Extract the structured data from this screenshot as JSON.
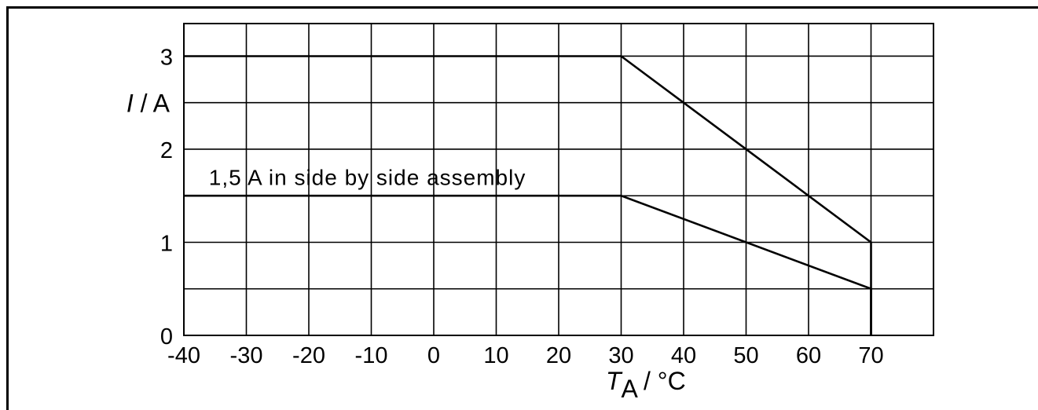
{
  "chart_data": {
    "type": "line",
    "title": "",
    "xlabel": {
      "symbol": "T",
      "subscript": "A",
      "unit": " / °C"
    },
    "ylabel": {
      "symbol": "I",
      "unit": " / A"
    },
    "xlim": [
      -40,
      80
    ],
    "ylim": [
      0,
      3.35
    ],
    "x_ticks": [
      -40,
      -30,
      -20,
      -10,
      0,
      10,
      20,
      30,
      40,
      50,
      60,
      70
    ],
    "x_tick_labels": [
      "-40",
      "-30",
      "-20",
      "-10",
      "0",
      "10",
      "20",
      "30",
      "40",
      "50",
      "60",
      "70"
    ],
    "x_grid": [
      -40,
      -30,
      -20,
      -10,
      0,
      10,
      20,
      30,
      40,
      50,
      60,
      70,
      80
    ],
    "y_ticks": [
      0,
      1,
      2,
      3
    ],
    "y_tick_labels": [
      "0",
      "1",
      "2",
      "3"
    ],
    "y_grid": [
      0,
      0.5,
      1,
      1.5,
      2,
      2.5,
      3
    ],
    "grid": true,
    "series": [
      {
        "x": [
          -40,
          30,
          70,
          70
        ],
        "y": [
          3,
          3,
          1,
          0
        ]
      },
      {
        "x": [
          -40,
          30,
          70,
          70
        ],
        "y": [
          1.5,
          1.5,
          0.5,
          0
        ]
      }
    ],
    "annotations": [
      {
        "text": "1,5 A in side by side assembly",
        "x": -36,
        "y": 1.6
      }
    ],
    "colors": {
      "line": "#000000",
      "grid": "#000000",
      "background": "#ffffff"
    }
  }
}
